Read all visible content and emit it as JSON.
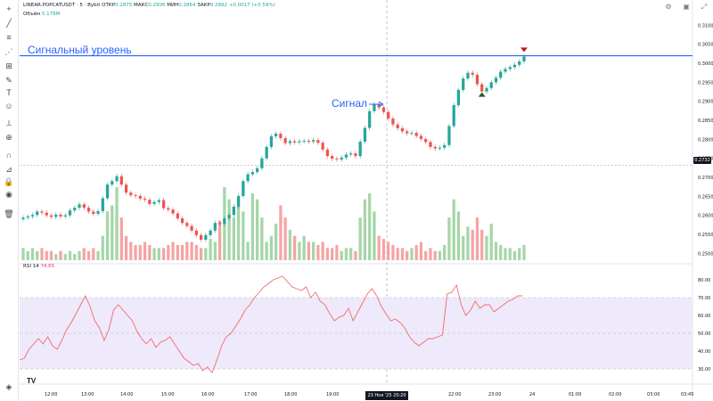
{
  "header": {
    "symbol": "LINEAR:POPCATUSDT · 5 · Bybit",
    "open_label": "ОТКР",
    "open_value": "0.2875",
    "high_label": "МАКС",
    "high_value": "0.2906",
    "low_label": "МИН",
    "low_value": "0.2864",
    "close_label": "ЗАКР",
    "close_value": "0.2892",
    "change": "+0.0017 (+0.59%)",
    "volume_label": "Объём",
    "volume_value": "5.178M"
  },
  "rsi_label": "RSI 14",
  "rsi_value": "74.65",
  "annotations": {
    "signal_level": "Сигнальный уровень",
    "signal": "Сигнал"
  },
  "current_price_tag": "0.2732",
  "date_tag": "23 Ноя '25   20:20",
  "watermark": "TV",
  "colors": {
    "up": "#26a69a",
    "down": "#ef5350",
    "vol_up": "#a5d6a7",
    "vol_down": "#f5a4a4",
    "level_line": "#2962ff",
    "rsi_line": "#f26b6b",
    "rsi_band": "#eee9fb"
  },
  "toolbar_icons": [
    "crosshair-icon",
    "trendline-icon",
    "fib-icon",
    "pattern-icon",
    "measure-icon",
    "brush-icon",
    "text-icon",
    "emoji-icon",
    "ruler-icon",
    "zoom-icon",
    "magnet-icon",
    "lock-drawing-icon",
    "lock-icon",
    "eye-icon",
    "trash-icon"
  ],
  "chart_data": [
    {
      "type": "candlestick",
      "x_ticks": [
        "12:00",
        "13:00",
        "14:00",
        "15:00",
        "16:00",
        "17:00",
        "18:00",
        "19:00",
        "20:20",
        "22:00",
        "23:00",
        "24",
        "01:00",
        "02:00",
        "03:00",
        "03:45"
      ],
      "y_ticks": [
        "0.3100",
        "0.3050",
        "0.3000",
        "0.2950",
        "0.2900",
        "0.2850",
        "0.2800",
        "0.2750",
        "0.2700",
        "0.2650",
        "0.2600",
        "0.2550",
        "0.2500"
      ],
      "ylim": [
        0.2482,
        0.3115
      ],
      "signal_level": 0.302,
      "current_price": 0.2732,
      "closes": [
        0.2594,
        0.2597,
        0.2601,
        0.261,
        0.2607,
        0.26,
        0.2596,
        0.2602,
        0.2597,
        0.26,
        0.2613,
        0.262,
        0.2629,
        0.262,
        0.261,
        0.2604,
        0.2611,
        0.2645,
        0.2681,
        0.269,
        0.2703,
        0.2681,
        0.266,
        0.2653,
        0.2651,
        0.2644,
        0.2641,
        0.263,
        0.2635,
        0.264,
        0.2619,
        0.2615,
        0.2605,
        0.2592,
        0.258,
        0.2572,
        0.256,
        0.2548,
        0.2536,
        0.2548,
        0.256,
        0.258,
        0.2577,
        0.2592,
        0.2601,
        0.2623,
        0.2651,
        0.269,
        0.2708,
        0.2714,
        0.2724,
        0.275,
        0.278,
        0.2808,
        0.2815,
        0.2803,
        0.279,
        0.2795,
        0.2792,
        0.2795,
        0.2796,
        0.2794,
        0.2798,
        0.2791,
        0.2773,
        0.2756,
        0.2749,
        0.2747,
        0.2752,
        0.276,
        0.2763,
        0.2756,
        0.2794,
        0.283,
        0.2874,
        0.2892,
        0.2884,
        0.2872,
        0.2855,
        0.2839,
        0.2829,
        0.2821,
        0.2816,
        0.2817,
        0.2809,
        0.2801,
        0.2793,
        0.278,
        0.2776,
        0.2778,
        0.2785,
        0.2835,
        0.289,
        0.293,
        0.296,
        0.2975,
        0.297,
        0.2945,
        0.2926,
        0.2935,
        0.295,
        0.2962,
        0.2978,
        0.2985,
        0.299,
        0.2996,
        0.3005,
        0.3018
      ],
      "volumes": [
        4,
        3,
        4,
        3,
        4,
        3,
        3,
        2,
        3,
        2,
        3,
        2,
        3,
        4,
        3,
        4,
        3,
        8,
        16,
        18,
        24,
        14,
        8,
        6,
        5,
        5,
        6,
        5,
        4,
        4,
        4,
        5,
        6,
        5,
        5,
        6,
        6,
        5,
        4,
        4,
        7,
        6,
        13,
        24,
        20,
        14,
        18,
        16,
        6,
        22,
        20,
        14,
        6,
        8,
        12,
        18,
        14,
        10,
        8,
        6,
        8,
        6,
        6,
        5,
        6,
        4,
        4,
        5,
        3,
        4,
        4,
        3,
        14,
        20,
        22,
        16,
        8,
        7,
        6,
        5,
        4,
        4,
        3,
        4,
        5,
        6,
        3,
        4,
        3,
        3,
        5,
        14,
        20,
        16,
        8,
        11,
        10,
        14,
        10,
        8,
        12,
        6,
        5,
        4,
        4,
        3,
        4,
        5
      ],
      "marker_sell_index": 107,
      "marker_buy_index": 98
    },
    {
      "type": "line",
      "name": "RSI 14",
      "ylim": [
        25,
        86
      ],
      "y_ticks": [
        "80.00",
        "70.00",
        "60.00",
        "50.00",
        "40.00",
        "30.00"
      ],
      "bands": [
        30,
        50,
        70
      ],
      "values": [
        35,
        36,
        41,
        44,
        47,
        44,
        48,
        43,
        41,
        46,
        52,
        56,
        61,
        66,
        71,
        65,
        57,
        53,
        46,
        52,
        63,
        66,
        63,
        60,
        57,
        51,
        47,
        44,
        47,
        42,
        45,
        46,
        48,
        44,
        40,
        36,
        34,
        32,
        33,
        29,
        31,
        28,
        35,
        43,
        48,
        50,
        54,
        58,
        63,
        66,
        70,
        73,
        76,
        78,
        80,
        81,
        82,
        79,
        76,
        75,
        74,
        76,
        70,
        73,
        68,
        66,
        61,
        57,
        59,
        60,
        64,
        57,
        62,
        67,
        72,
        75,
        71,
        65,
        61,
        57,
        58,
        56,
        53,
        48,
        45,
        43,
        45,
        47,
        47,
        48,
        49,
        72,
        73,
        77,
        66,
        60,
        63,
        68,
        64,
        66,
        66,
        62,
        64,
        66,
        68,
        69,
        71,
        71
      ]
    }
  ]
}
